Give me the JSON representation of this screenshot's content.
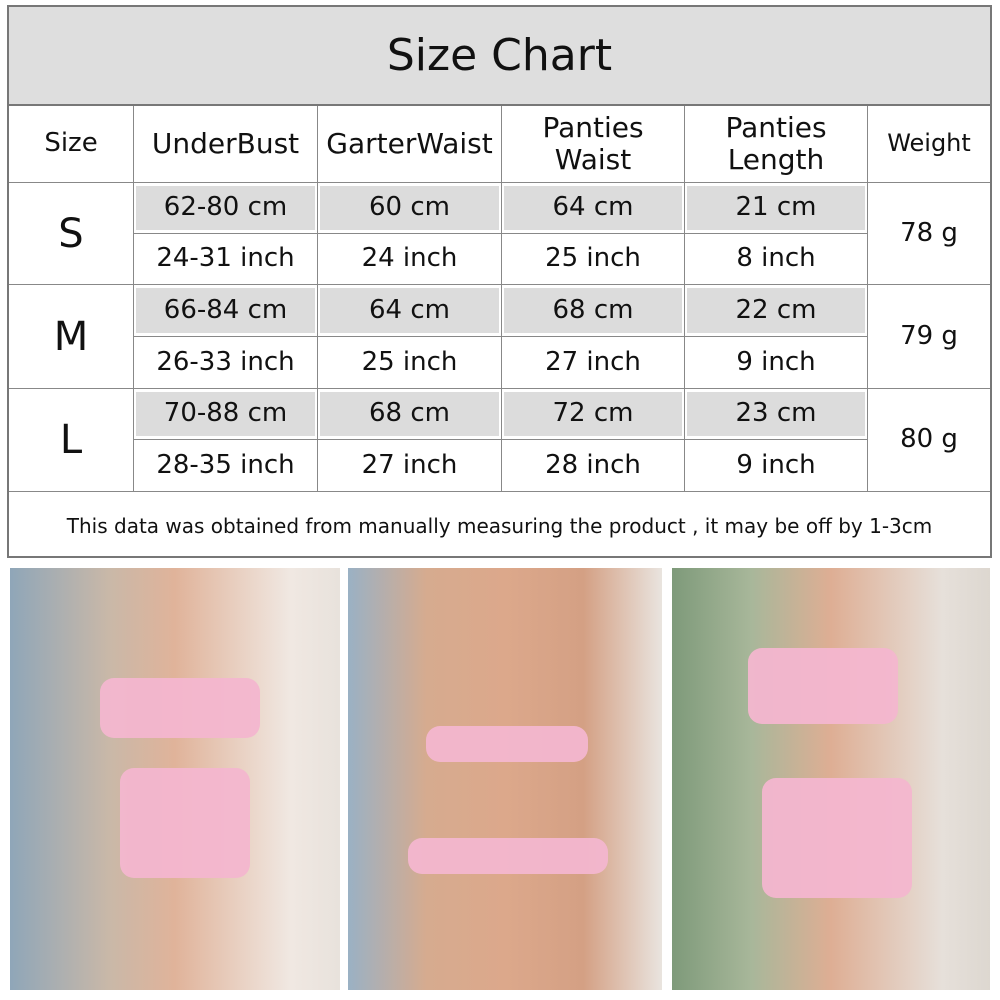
{
  "title": "Size Chart",
  "headers": [
    "Size",
    "UnderBust",
    "GarterWaist",
    "Panties Waist",
    "Panties Length",
    "Weight"
  ],
  "rows": [
    {
      "size": "S",
      "cm": [
        "62-80 cm",
        "60 cm",
        "64 cm",
        "21 cm"
      ],
      "inch": [
        "24-31 inch",
        "24 inch",
        "25 inch",
        "8 inch"
      ],
      "weight": "78 g"
    },
    {
      "size": "M",
      "cm": [
        "66-84 cm",
        "64 cm",
        "68 cm",
        "22 cm"
      ],
      "inch": [
        "26-33 inch",
        "25 inch",
        "27 inch",
        "9 inch"
      ],
      "weight": "79 g"
    },
    {
      "size": "L",
      "cm": [
        "70-88 cm",
        "68 cm",
        "72 cm",
        "23 cm"
      ],
      "inch": [
        "28-35 inch",
        "27 inch",
        "28 inch",
        "9 inch"
      ],
      "weight": "80 g"
    }
  ],
  "footer": "This data was obtained from manually measuring the product , it may be off by 1-3cm",
  "colors": {
    "title_bg": "#dedede",
    "cm_row_bg": "#dcdcdc",
    "garment": "#f3b6cf"
  }
}
